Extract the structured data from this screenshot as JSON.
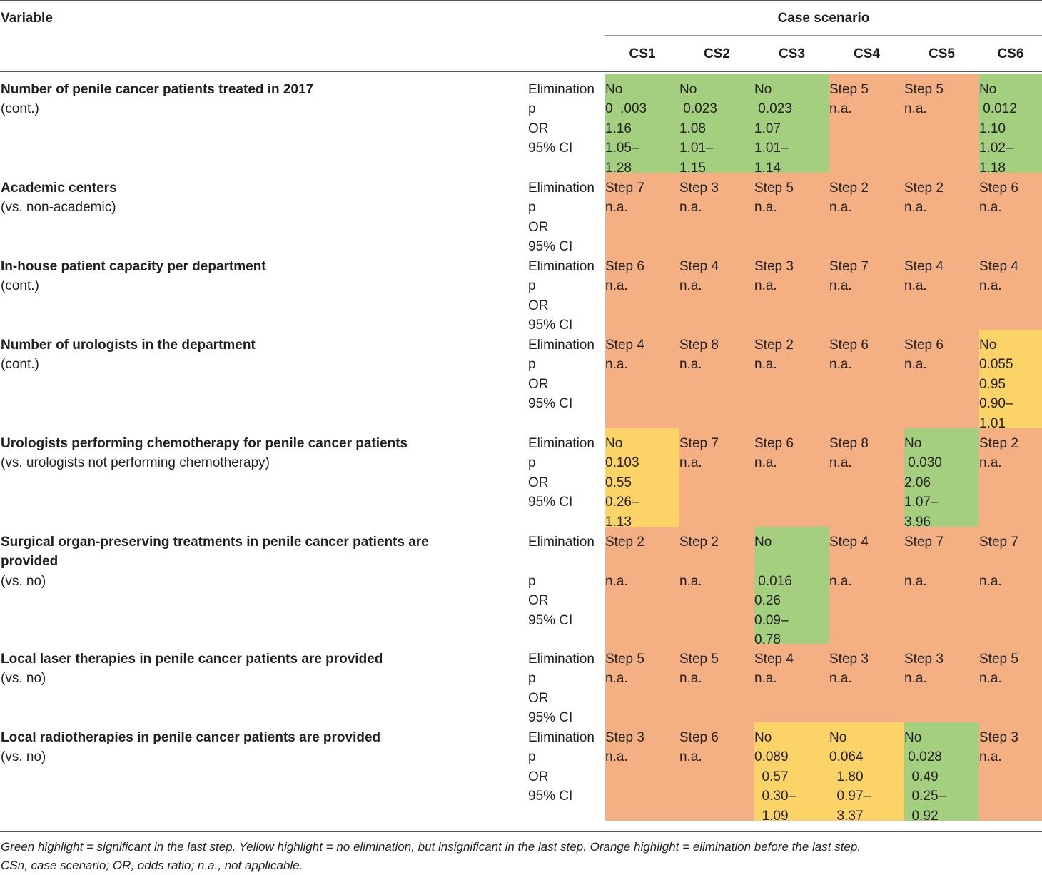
{
  "header": {
    "variable_label": "Variable",
    "case_scenario_label": "Case scenario",
    "columns": [
      "CS1",
      "CS2",
      "CS3",
      "CS4",
      "CS5",
      "CS6"
    ]
  },
  "row_labels": [
    "Elimination",
    "p",
    "OR",
    "95% CI"
  ],
  "rows": [
    {
      "title": "Number of penile cancer patients treated in 2017",
      "sub": "(cont.)",
      "cells": [
        {
          "color": "green",
          "lines": [
            "No",
            "0  .003",
            "1.16",
            "1.05–",
            "1.28"
          ]
        },
        {
          "color": "green",
          "lines": [
            "No",
            " 0.023",
            "1.08",
            "1.01–",
            "1.15"
          ]
        },
        {
          "color": "green",
          "lines": [
            "No",
            " 0.023",
            "1.07",
            "1.01–",
            "1.14"
          ]
        },
        {
          "color": "orange",
          "lines": [
            "Step 5",
            "n.a."
          ]
        },
        {
          "color": "orange",
          "lines": [
            "Step 5",
            "n.a."
          ]
        },
        {
          "color": "green",
          "lines": [
            "No",
            " 0.012",
            "1.10",
            "1.02–",
            "1.18"
          ]
        }
      ]
    },
    {
      "title": "Academic centers",
      "sub": "(vs. non-academic)",
      "cells": [
        {
          "color": "orange",
          "lines": [
            "Step 7",
            "n.a."
          ]
        },
        {
          "color": "orange",
          "lines": [
            "Step 3",
            "n.a."
          ]
        },
        {
          "color": "orange",
          "lines": [
            "Step 5",
            "n.a."
          ]
        },
        {
          "color": "orange",
          "lines": [
            "Step 2",
            "n.a."
          ]
        },
        {
          "color": "orange",
          "lines": [
            "Step 2",
            "n.a."
          ]
        },
        {
          "color": "orange",
          "lines": [
            "Step 6",
            "n.a."
          ]
        }
      ]
    },
    {
      "title": "In-house patient capacity per department",
      "sub": "(cont.)",
      "cells": [
        {
          "color": "orange",
          "lines": [
            "Step 6",
            "n.a."
          ]
        },
        {
          "color": "orange",
          "lines": [
            "Step 4",
            "n.a."
          ]
        },
        {
          "color": "orange",
          "lines": [
            "Step 3",
            "n.a."
          ]
        },
        {
          "color": "orange",
          "lines": [
            "Step 7",
            "n.a."
          ]
        },
        {
          "color": "orange",
          "lines": [
            "Step 4",
            "n.a."
          ]
        },
        {
          "color": "orange",
          "lines": [
            "Step 4",
            "n.a."
          ]
        }
      ]
    },
    {
      "title": "Number of urologists in the department",
      "sub": "(cont.)",
      "cells": [
        {
          "color": "orange",
          "lines": [
            "Step 4",
            "n.a."
          ]
        },
        {
          "color": "orange",
          "lines": [
            "Step 8",
            "n.a."
          ]
        },
        {
          "color": "orange",
          "lines": [
            "Step 2",
            "n.a."
          ]
        },
        {
          "color": "orange",
          "lines": [
            "Step 6",
            "n.a."
          ]
        },
        {
          "color": "orange",
          "lines": [
            "Step 6",
            "n.a."
          ]
        },
        {
          "color": "yellow",
          "lines": [
            "No",
            "0.055",
            "0.95",
            "0.90–",
            "1.01"
          ]
        }
      ]
    },
    {
      "title": "Urologists performing chemotherapy for penile cancer patients",
      "sub": "(vs. urologists not performing chemotherapy)",
      "cells": [
        {
          "color": "yellow",
          "lines": [
            "No",
            "0.103",
            "0.55",
            "0.26–",
            "1.13"
          ]
        },
        {
          "color": "orange",
          "lines": [
            "Step 7",
            "n.a."
          ]
        },
        {
          "color": "orange",
          "lines": [
            "Step 6",
            "n.a."
          ]
        },
        {
          "color": "orange",
          "lines": [
            "Step 8",
            "n.a."
          ]
        },
        {
          "color": "green",
          "lines": [
            "No",
            " 0.030",
            "2.06",
            "1.07–",
            "3.96"
          ]
        },
        {
          "color": "orange",
          "lines": [
            "Step 2",
            "n.a."
          ]
        }
      ]
    },
    {
      "title": "Surgical organ-preserving treatments in penile cancer patients are provided",
      "sub": "(vs. no)",
      "cells": [
        {
          "color": "orange",
          "lines": [
            "Step 2",
            "",
            "n.a."
          ]
        },
        {
          "color": "orange",
          "lines": [
            "Step 2",
            "",
            "n.a."
          ]
        },
        {
          "color": "green",
          "lines": [
            "No",
            "",
            " 0.016",
            "0.26",
            "0.09–",
            "0.78"
          ]
        },
        {
          "color": "orange",
          "lines": [
            "Step 4",
            "",
            "n.a."
          ]
        },
        {
          "color": "orange",
          "lines": [
            "Step 7",
            "",
            "n.a."
          ]
        },
        {
          "color": "orange",
          "lines": [
            "Step 7",
            "",
            "n.a."
          ]
        }
      ]
    },
    {
      "title": "Local laser therapies in penile cancer patients are provided",
      "sub": "(vs. no)",
      "cells": [
        {
          "color": "orange",
          "lines": [
            "Step 5",
            "n.a."
          ]
        },
        {
          "color": "orange",
          "lines": [
            "Step 5",
            "n.a."
          ]
        },
        {
          "color": "orange",
          "lines": [
            "Step 4",
            "n.a."
          ]
        },
        {
          "color": "orange",
          "lines": [
            "Step 3",
            "n.a."
          ]
        },
        {
          "color": "orange",
          "lines": [
            "Step 3",
            "n.a."
          ]
        },
        {
          "color": "orange",
          "lines": [
            "Step 5",
            "n.a."
          ]
        }
      ]
    },
    {
      "title": "Local radiotherapies in penile cancer patients are provided",
      "sub": "(vs. no)",
      "cells": [
        {
          "color": "orange",
          "lines": [
            "Step 3",
            "n.a."
          ]
        },
        {
          "color": "orange",
          "lines": [
            "Step 6",
            "n.a."
          ]
        },
        {
          "color": "yellow",
          "lines": [
            "No",
            "0.089",
            "  0.57",
            "  0.30–",
            "  1.09"
          ]
        },
        {
          "color": "yellow",
          "lines": [
            "No",
            "0.064",
            "  1.80",
            "  0.97–",
            "  3.37"
          ]
        },
        {
          "color": "green",
          "lines": [
            "No",
            " 0.028",
            "  0.49",
            "  0.25–",
            "  0.92"
          ]
        },
        {
          "color": "orange",
          "lines": [
            "Step 3",
            "n.a."
          ]
        }
      ]
    }
  ],
  "footnotes": [
    "Green highlight = significant in the last step. Yellow highlight = no elimination, but insignificant in the last step. Orange highlight = elimination before the last step.",
    "CSn, case scenario; OR, odds ratio; n.a., not applicable."
  ],
  "colors": {
    "green": "#a3cf7f",
    "yellow": "#fcd366",
    "orange": "#f4b083"
  }
}
